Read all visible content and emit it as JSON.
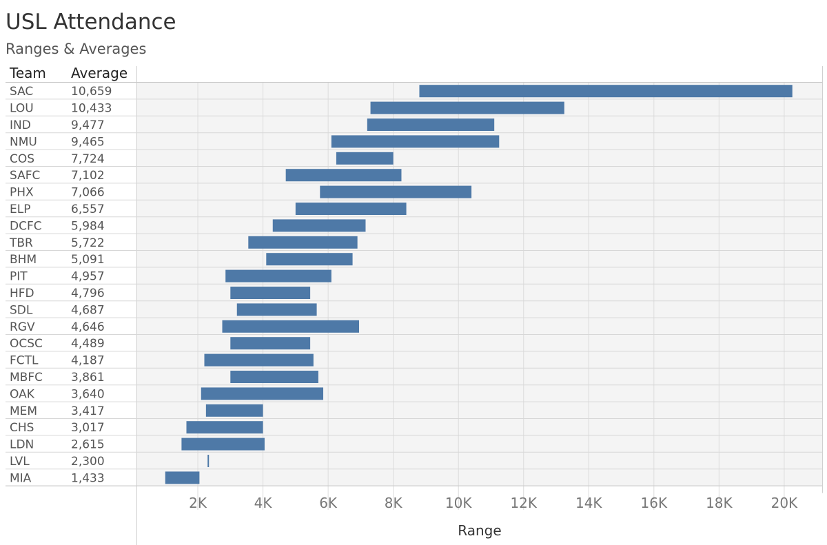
{
  "header": {
    "title": "USL Attendance",
    "subtitle": "Ranges & Averages",
    "col_team": "Team",
    "col_average": "Average"
  },
  "chart_data": {
    "type": "bar",
    "orientation": "horizontal",
    "title": "USL Attendance",
    "subtitle": "Ranges & Averages",
    "xlabel": "Range",
    "xlim": [
      0,
      21000
    ],
    "x_ticks": [
      2000,
      4000,
      6000,
      8000,
      10000,
      12000,
      14000,
      16000,
      18000,
      20000
    ],
    "x_tick_labels": [
      "2K",
      "4K",
      "6K",
      "8K",
      "10K",
      "12K",
      "14K",
      "16K",
      "18K",
      "20K"
    ],
    "grid": true,
    "bar_color": "#4e79a7",
    "rows": [
      {
        "team": "SAC",
        "average": "10,659",
        "min": 8800,
        "max": 20250
      },
      {
        "team": "LOU",
        "average": "10,433",
        "min": 7300,
        "max": 13250
      },
      {
        "team": "IND",
        "average": "9,477",
        "min": 7200,
        "max": 11100
      },
      {
        "team": "NMU",
        "average": "9,465",
        "min": 6100,
        "max": 11250
      },
      {
        "team": "COS",
        "average": "7,724",
        "min": 6250,
        "max": 8000
      },
      {
        "team": "SAFC",
        "average": "7,102",
        "min": 4700,
        "max": 8250
      },
      {
        "team": "PHX",
        "average": "7,066",
        "min": 5750,
        "max": 10400
      },
      {
        "team": "ELP",
        "average": "6,557",
        "min": 5000,
        "max": 8400
      },
      {
        "team": "DCFC",
        "average": "5,984",
        "min": 4300,
        "max": 7150
      },
      {
        "team": "TBR",
        "average": "5,722",
        "min": 3550,
        "max": 6900
      },
      {
        "team": "BHM",
        "average": "5,091",
        "min": 4100,
        "max": 6750
      },
      {
        "team": "PIT",
        "average": "4,957",
        "min": 2850,
        "max": 6100
      },
      {
        "team": "HFD",
        "average": "4,796",
        "min": 3000,
        "max": 5450
      },
      {
        "team": "SDL",
        "average": "4,687",
        "min": 3200,
        "max": 5650
      },
      {
        "team": "RGV",
        "average": "4,646",
        "min": 2750,
        "max": 6950
      },
      {
        "team": "OCSC",
        "average": "4,489",
        "min": 3000,
        "max": 5450
      },
      {
        "team": "FCTL",
        "average": "4,187",
        "min": 2200,
        "max": 5550
      },
      {
        "team": "MBFC",
        "average": "3,861",
        "min": 3000,
        "max": 5700
      },
      {
        "team": "OAK",
        "average": "3,640",
        "min": 2100,
        "max": 5850
      },
      {
        "team": "MEM",
        "average": "3,417",
        "min": 2250,
        "max": 4000
      },
      {
        "team": "CHS",
        "average": "3,017",
        "min": 1650,
        "max": 4000
      },
      {
        "team": "LDN",
        "average": "2,615",
        "min": 1500,
        "max": 4050
      },
      {
        "team": "LVL",
        "average": "2,300",
        "min": 2300,
        "max": 2300
      },
      {
        "team": "MIA",
        "average": "1,433",
        "min": 1000,
        "max": 2050
      }
    ]
  }
}
